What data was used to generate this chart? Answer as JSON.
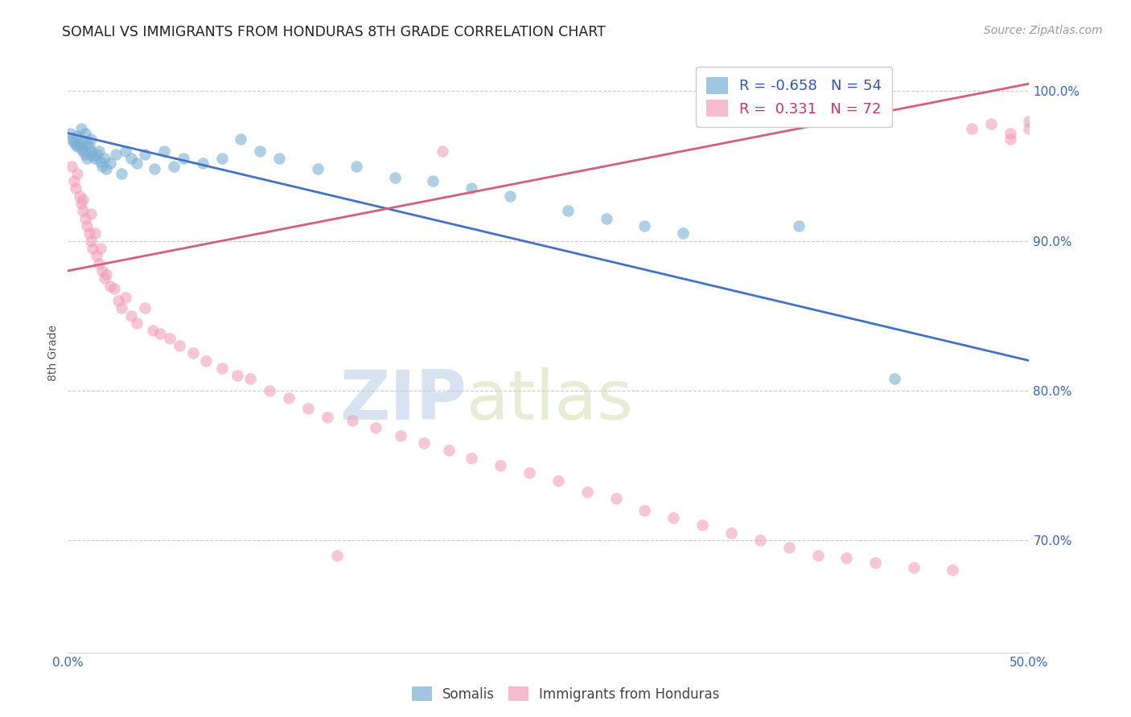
{
  "title": "SOMALI VS IMMIGRANTS FROM HONDURAS 8TH GRADE CORRELATION CHART",
  "source": "Source: ZipAtlas.com",
  "ylabel_label": "8th Grade",
  "x_min": 0.0,
  "x_max": 0.5,
  "y_min": 0.625,
  "y_max": 1.025,
  "y_ticks": [
    0.7,
    0.8,
    0.9,
    1.0
  ],
  "y_tick_labels": [
    "70.0%",
    "80.0%",
    "90.0%",
    "100.0%"
  ],
  "somali_color": "#7bafd4",
  "honduras_color": "#f0a0b8",
  "somali_line_color": "#4472c4",
  "honduras_line_color": "#d45f7a",
  "legend_somali_R": "-0.658",
  "legend_somali_N": "54",
  "legend_honduras_R": "0.331",
  "legend_honduras_N": "72",
  "watermark_zip": "ZIP",
  "watermark_atlas": "atlas",
  "background_color": "#ffffff",
  "grid_color": "#cccccc",
  "somali_x": [
    0.001,
    0.002,
    0.003,
    0.004,
    0.005,
    0.005,
    0.006,
    0.007,
    0.007,
    0.008,
    0.008,
    0.009,
    0.009,
    0.01,
    0.01,
    0.011,
    0.012,
    0.012,
    0.013,
    0.014,
    0.015,
    0.016,
    0.017,
    0.018,
    0.019,
    0.02,
    0.022,
    0.025,
    0.028,
    0.03,
    0.033,
    0.036,
    0.04,
    0.045,
    0.05,
    0.055,
    0.06,
    0.07,
    0.08,
    0.09,
    0.1,
    0.11,
    0.13,
    0.15,
    0.17,
    0.19,
    0.21,
    0.23,
    0.26,
    0.28,
    0.3,
    0.32,
    0.38,
    0.43
  ],
  "somali_y": [
    0.972,
    0.968,
    0.966,
    0.964,
    0.963,
    0.97,
    0.965,
    0.962,
    0.975,
    0.96,
    0.967,
    0.958,
    0.972,
    0.955,
    0.965,
    0.963,
    0.96,
    0.968,
    0.957,
    0.955,
    0.958,
    0.96,
    0.953,
    0.95,
    0.955,
    0.948,
    0.952,
    0.958,
    0.945,
    0.96,
    0.955,
    0.952,
    0.958,
    0.948,
    0.96,
    0.95,
    0.955,
    0.952,
    0.955,
    0.968,
    0.96,
    0.955,
    0.948,
    0.95,
    0.942,
    0.94,
    0.935,
    0.93,
    0.92,
    0.915,
    0.91,
    0.905,
    0.91,
    0.808
  ],
  "honduras_x": [
    0.002,
    0.003,
    0.004,
    0.005,
    0.006,
    0.007,
    0.008,
    0.008,
    0.009,
    0.01,
    0.011,
    0.012,
    0.012,
    0.013,
    0.014,
    0.015,
    0.016,
    0.017,
    0.018,
    0.019,
    0.02,
    0.022,
    0.024,
    0.026,
    0.028,
    0.03,
    0.033,
    0.036,
    0.04,
    0.044,
    0.048,
    0.053,
    0.058,
    0.065,
    0.072,
    0.08,
    0.088,
    0.095,
    0.105,
    0.115,
    0.125,
    0.135,
    0.148,
    0.16,
    0.173,
    0.185,
    0.198,
    0.21,
    0.225,
    0.24,
    0.255,
    0.27,
    0.285,
    0.3,
    0.315,
    0.33,
    0.345,
    0.36,
    0.375,
    0.39,
    0.405,
    0.42,
    0.44,
    0.46,
    0.47,
    0.48,
    0.49,
    0.49,
    0.5,
    0.5,
    0.195,
    0.14
  ],
  "honduras_y": [
    0.95,
    0.94,
    0.935,
    0.945,
    0.93,
    0.925,
    0.928,
    0.92,
    0.915,
    0.91,
    0.905,
    0.9,
    0.918,
    0.895,
    0.905,
    0.89,
    0.885,
    0.895,
    0.88,
    0.875,
    0.878,
    0.87,
    0.868,
    0.86,
    0.855,
    0.862,
    0.85,
    0.845,
    0.855,
    0.84,
    0.838,
    0.835,
    0.83,
    0.825,
    0.82,
    0.815,
    0.81,
    0.808,
    0.8,
    0.795,
    0.788,
    0.782,
    0.78,
    0.775,
    0.77,
    0.765,
    0.76,
    0.755,
    0.75,
    0.745,
    0.74,
    0.732,
    0.728,
    0.72,
    0.715,
    0.71,
    0.705,
    0.7,
    0.695,
    0.69,
    0.688,
    0.685,
    0.682,
    0.68,
    0.975,
    0.978,
    0.972,
    0.968,
    0.98,
    0.975,
    0.96,
    0.69
  ],
  "blue_line_x0": 0.0,
  "blue_line_y0": 0.972,
  "blue_line_x1": 0.5,
  "blue_line_y1": 0.82,
  "pink_line_x0": 0.0,
  "pink_line_y0": 0.88,
  "pink_line_x1": 0.5,
  "pink_line_y1": 1.005
}
